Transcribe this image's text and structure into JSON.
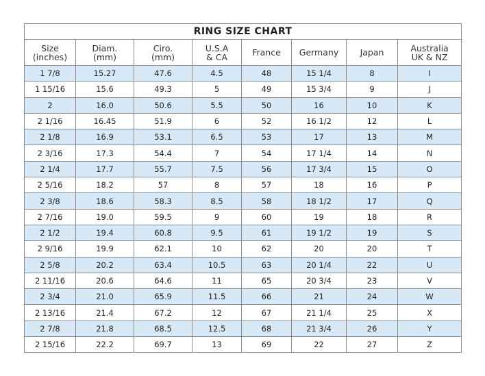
{
  "title": "RING SIZE CHART",
  "headers": [
    [
      "Size",
      "(inches)"
    ],
    [
      "Diam.",
      "(mm)"
    ],
    [
      "Ciro.",
      "(mm)"
    ],
    [
      "U.S.A",
      "& CA"
    ],
    [
      "France",
      ""
    ],
    [
      "Germany",
      ""
    ],
    [
      "Japan",
      ""
    ],
    [
      "Australia",
      "UK & NZ"
    ]
  ],
  "rows": [
    [
      "1 7/8",
      "15.27",
      "47.6",
      "4.5",
      "48",
      "15 1/4",
      "8",
      "I"
    ],
    [
      "1 15/16",
      "15.6",
      "49.3",
      "5",
      "49",
      "15 3/4",
      "9",
      "J"
    ],
    [
      "2",
      "16.0",
      "50.6",
      "5.5",
      "50",
      "16",
      "10",
      "K"
    ],
    [
      "2 1/16",
      "16.45",
      "51.9",
      "6",
      "52",
      "16 1/2",
      "12",
      "L"
    ],
    [
      "2 1/8",
      "16.9",
      "53.1",
      "6.5",
      "53",
      "17",
      "13",
      "M"
    ],
    [
      "2 3/16",
      "17.3",
      "54.4",
      "7",
      "54",
      "17 1/4",
      "14",
      "N"
    ],
    [
      "2 1/4",
      "17.7",
      "55.7",
      "7.5",
      "56",
      "17 3/4",
      "15",
      "O"
    ],
    [
      "2 5/16",
      "18.2",
      "57",
      "8",
      "57",
      "18",
      "16",
      "P"
    ],
    [
      "2 3/8",
      "18.6",
      "58.3",
      "8.5",
      "58",
      "18 1/2",
      "17",
      "Q"
    ],
    [
      "2 7/16",
      "19.0",
      "59.5",
      "9",
      "60",
      "19",
      "18",
      "R"
    ],
    [
      "2 1/2",
      "19.4",
      "60.8",
      "9.5",
      "61",
      "19 1/2",
      "19",
      "S"
    ],
    [
      "2 9/16",
      "19.9",
      "62.1",
      "10",
      "62",
      "20",
      "20",
      "T"
    ],
    [
      "2 5/8",
      "20.2",
      "63.4",
      "10.5",
      "63",
      "20 1/4",
      "22",
      "U"
    ],
    [
      "2 11/16",
      "20.6",
      "64.6",
      "11",
      "65",
      "20 3/4",
      "23",
      "V"
    ],
    [
      "2 3/4",
      "21.0",
      "65.9",
      "11.5",
      "66",
      "21",
      "24",
      "W"
    ],
    [
      "2 13/16",
      "21.4",
      "67.2",
      "12",
      "67",
      "21 1/4",
      "25",
      "X"
    ],
    [
      "2 7/8",
      "21.8",
      "68.5",
      "12.5",
      "68",
      "21 3/4",
      "26",
      "Y"
    ],
    [
      "2 15/16",
      "22.2",
      "69.7",
      "13",
      "69",
      "22",
      "27",
      "Z"
    ]
  ],
  "colors": {
    "stripe": "#d7e8f7",
    "border": "#8a8a8a"
  }
}
